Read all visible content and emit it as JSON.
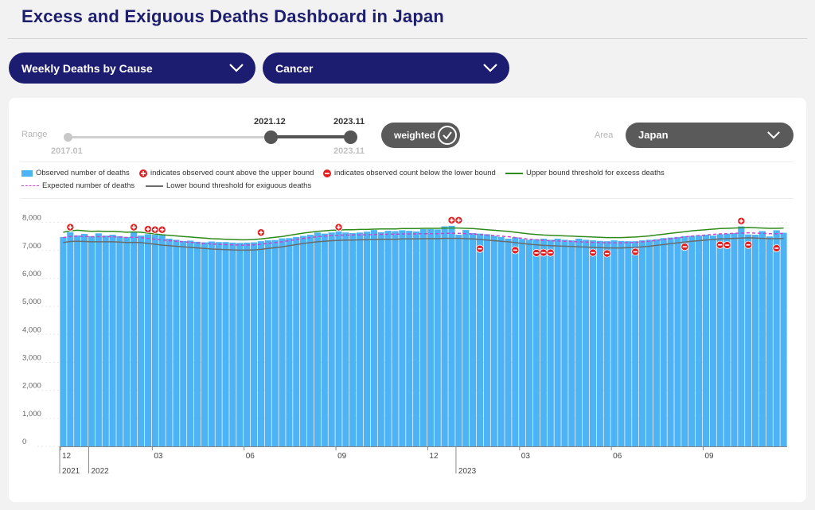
{
  "header": {
    "title": "Excess and Exiguous Deaths Dashboard in Japan"
  },
  "filters": {
    "dataset": "Weekly Deaths by Cause",
    "cause": "Cancer"
  },
  "controls": {
    "range_label": "Range",
    "range_min": "2017.01",
    "range_start": "2021.12",
    "range_end": "2023.11",
    "range_end_below": "2023.11",
    "weighted_label": "weighted",
    "area_label": "Area",
    "area_value": "Japan"
  },
  "legend": {
    "observed": "Observed number of deaths",
    "above": "indicates observed count above the upper bound",
    "below": "indicates observed count below the lower bound",
    "upper": "Upper bound threshold for excess deaths",
    "expected": "Expected number of deaths",
    "lower": "Lower bound threshold for exiguous deaths"
  },
  "colors": {
    "bar": "#4db3f4",
    "upper": "#2e8b1a",
    "expected": "#cc44cc",
    "lower": "#6b6b6b",
    "marker": "#e02020",
    "navy": "#1c1c70"
  },
  "chart_data": {
    "type": "bar",
    "start_week": "2021-12",
    "ylim": [
      0,
      8500
    ],
    "yticks": [
      0,
      1000,
      2000,
      3000,
      4000,
      5000,
      6000,
      7000,
      8000
    ],
    "ytick_labels": [
      "0",
      "1,000",
      "2,000",
      "3,000",
      "4,000",
      "5,000",
      "6,000",
      "7,000",
      "8,000"
    ],
    "xticks": [
      {
        "week": 0,
        "label": "12"
      },
      {
        "week": 13,
        "label": "03"
      },
      {
        "week": 26,
        "label": "06"
      },
      {
        "week": 39,
        "label": "09"
      },
      {
        "week": 52,
        "label": "12"
      },
      {
        "week": 65,
        "label": "03"
      },
      {
        "week": 78,
        "label": "06"
      },
      {
        "week": 91,
        "label": "09"
      }
    ],
    "years": [
      {
        "week": 0,
        "label": "2021"
      },
      {
        "week": 4,
        "label": "2022"
      },
      {
        "week": 56,
        "label": "2023"
      }
    ],
    "observed": [
      7480,
      7650,
      7540,
      7590,
      7510,
      7610,
      7530,
      7560,
      7510,
      7480,
      7660,
      7530,
      7580,
      7560,
      7540,
      7420,
      7380,
      7340,
      7350,
      7310,
      7290,
      7320,
      7300,
      7300,
      7280,
      7270,
      7280,
      7290,
      7330,
      7360,
      7370,
      7430,
      7440,
      7480,
      7520,
      7560,
      7640,
      7600,
      7640,
      7680,
      7640,
      7620,
      7640,
      7670,
      7730,
      7650,
      7700,
      7690,
      7720,
      7700,
      7680,
      7760,
      7760,
      7750,
      7860,
      7880,
      7560,
      7730,
      7620,
      7600,
      7580,
      7520,
      7480,
      7420,
      7470,
      7410,
      7380,
      7400,
      7420,
      7380,
      7420,
      7380,
      7360,
      7420,
      7380,
      7360,
      7340,
      7330,
      7360,
      7340,
      7330,
      7330,
      7360,
      7380,
      7400,
      7440,
      7460,
      7480,
      7510,
      7520,
      7540,
      7560,
      7530,
      7580,
      7600,
      7620,
      7860,
      7570,
      7560,
      7690,
      7500,
      7720,
      7630
    ],
    "upper": [
      7650,
      7700,
      7720,
      7700,
      7680,
      7690,
      7680,
      7680,
      7670,
      7650,
      7660,
      7650,
      7620,
      7590,
      7560,
      7540,
      7520,
      7500,
      7480,
      7460,
      7440,
      7420,
      7410,
      7400,
      7390,
      7380,
      7380,
      7390,
      7410,
      7440,
      7470,
      7500,
      7540,
      7580,
      7620,
      7650,
      7680,
      7700,
      7720,
      7730,
      7740,
      7740,
      7750,
      7750,
      7760,
      7770,
      7770,
      7770,
      7780,
      7780,
      7780,
      7790,
      7790,
      7790,
      7800,
      7800,
      7800,
      7790,
      7780,
      7760,
      7740,
      7720,
      7700,
      7680,
      7650,
      7620,
      7590,
      7570,
      7550,
      7540,
      7530,
      7520,
      7510,
      7500,
      7490,
      7480,
      7470,
      7460,
      7460,
      7460,
      7470,
      7480,
      7500,
      7520,
      7550,
      7580,
      7610,
      7640,
      7670,
      7700,
      7720,
      7740,
      7760,
      7780,
      7790,
      7800,
      7810,
      7820,
      7810,
      7800,
      7790,
      7790,
      7800
    ],
    "expected": [
      7460,
      7500,
      7510,
      7500,
      7490,
      7490,
      7490,
      7490,
      7480,
      7460,
      7470,
      7460,
      7430,
      7400,
      7370,
      7350,
      7330,
      7310,
      7290,
      7270,
      7250,
      7230,
      7220,
      7210,
      7200,
      7190,
      7190,
      7200,
      7220,
      7250,
      7280,
      7310,
      7350,
      7390,
      7430,
      7460,
      7490,
      7510,
      7530,
      7540,
      7550,
      7550,
      7560,
      7560,
      7570,
      7580,
      7580,
      7580,
      7590,
      7590,
      7590,
      7600,
      7600,
      7600,
      7610,
      7610,
      7610,
      7600,
      7590,
      7570,
      7550,
      7530,
      7510,
      7490,
      7460,
      7430,
      7400,
      7380,
      7360,
      7350,
      7340,
      7330,
      7320,
      7310,
      7300,
      7290,
      7280,
      7270,
      7270,
      7270,
      7280,
      7290,
      7310,
      7330,
      7360,
      7390,
      7420,
      7450,
      7480,
      7510,
      7530,
      7550,
      7570,
      7590,
      7600,
      7610,
      7620,
      7630,
      7620,
      7610,
      7600,
      7600,
      7610
    ],
    "lower": [
      7280,
      7320,
      7330,
      7320,
      7310,
      7310,
      7310,
      7310,
      7300,
      7280,
      7290,
      7280,
      7250,
      7220,
      7190,
      7170,
      7150,
      7130,
      7110,
      7090,
      7070,
      7050,
      7040,
      7030,
      7020,
      7010,
      7010,
      7020,
      7040,
      7070,
      7100,
      7130,
      7170,
      7210,
      7250,
      7280,
      7310,
      7330,
      7350,
      7360,
      7370,
      7370,
      7380,
      7380,
      7390,
      7400,
      7400,
      7400,
      7410,
      7410,
      7410,
      7420,
      7420,
      7420,
      7430,
      7430,
      7430,
      7420,
      7410,
      7390,
      7370,
      7350,
      7330,
      7310,
      7280,
      7250,
      7220,
      7200,
      7180,
      7170,
      7160,
      7150,
      7140,
      7130,
      7120,
      7110,
      7100,
      7090,
      7090,
      7090,
      7100,
      7110,
      7130,
      7150,
      7180,
      7210,
      7240,
      7270,
      7300,
      7330,
      7350,
      7370,
      7390,
      7410,
      7420,
      7430,
      7440,
      7450,
      7440,
      7430,
      7420,
      7420,
      7430
    ],
    "above_markers": [
      {
        "week": 1,
        "value": 7830
      },
      {
        "week": 10,
        "value": 7830
      },
      {
        "week": 12,
        "value": 7760
      },
      {
        "week": 13,
        "value": 7740
      },
      {
        "week": 14,
        "value": 7740
      },
      {
        "week": 28,
        "value": 7640
      },
      {
        "week": 39,
        "value": 7830
      },
      {
        "week": 55,
        "value": 8080
      },
      {
        "week": 56,
        "value": 8080
      },
      {
        "week": 96,
        "value": 8050
      }
    ],
    "below_markers": [
      {
        "week": 59,
        "value": 7060
      },
      {
        "week": 64,
        "value": 7010
      },
      {
        "week": 67,
        "value": 6910
      },
      {
        "week": 68,
        "value": 6920
      },
      {
        "week": 69,
        "value": 6920
      },
      {
        "week": 75,
        "value": 6920
      },
      {
        "week": 77,
        "value": 6890
      },
      {
        "week": 81,
        "value": 6950
      },
      {
        "week": 88,
        "value": 7130
      },
      {
        "week": 93,
        "value": 7200
      },
      {
        "week": 94,
        "value": 7190
      },
      {
        "week": 97,
        "value": 7200
      },
      {
        "week": 101,
        "value": 7080
      }
    ]
  }
}
